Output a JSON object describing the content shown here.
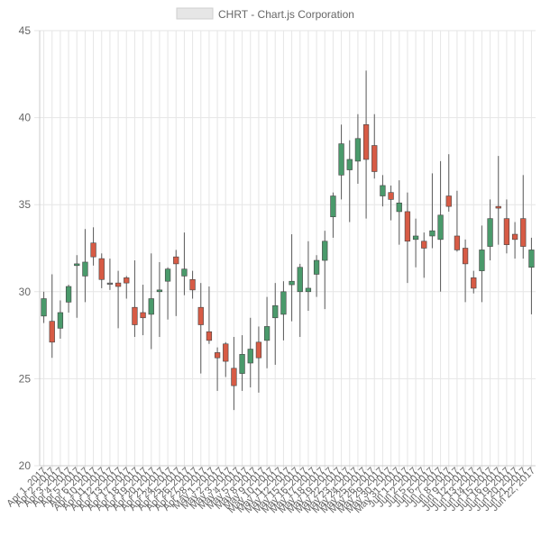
{
  "chart_data": {
    "type": "candlestick",
    "title": "",
    "legend": {
      "position": "top",
      "label": "CHRT - Chart.js Corporation"
    },
    "xlabel": "",
    "ylabel": "",
    "ylim": [
      20,
      45
    ],
    "yticks": [
      20,
      25,
      30,
      35,
      40,
      45
    ],
    "grid": true,
    "colors": {
      "up": "#4a9a6b",
      "down": "#d75b45",
      "unchanged": "#888888",
      "grid": "#e6e6e6",
      "text": "#666666",
      "wick": "#5a5a5a"
    },
    "candles": [
      {
        "date": "Apr 1, 2017",
        "o": 28.6,
        "h": 30.0,
        "l": 28.2,
        "c": 29.6
      },
      {
        "date": "Apr 2, 2017",
        "o": 28.3,
        "h": 31.0,
        "l": 26.2,
        "c": 27.1
      },
      {
        "date": "Apr 3, 2017",
        "o": 27.9,
        "h": 29.5,
        "l": 27.3,
        "c": 28.8
      },
      {
        "date": "Apr 4, 2017",
        "o": 29.4,
        "h": 30.4,
        "l": 28.8,
        "c": 30.3
      },
      {
        "date": "Apr 5, 2017",
        "o": 31.5,
        "h": 32.1,
        "l": 28.5,
        "c": 31.6
      },
      {
        "date": "Apr 6, 2017",
        "o": 30.9,
        "h": 33.6,
        "l": 29.4,
        "c": 31.7
      },
      {
        "date": "Apr 7, 2017",
        "o": 32.8,
        "h": 33.7,
        "l": 31.5,
        "c": 32.0
      },
      {
        "date": "Apr 8, 2017",
        "o": 31.9,
        "h": 32.2,
        "l": 30.2,
        "c": 30.7
      },
      {
        "date": "Apr 9, 2017",
        "o": 30.5,
        "h": 31.9,
        "l": 30.1,
        "c": 30.5
      },
      {
        "date": "Apr 10, 2017",
        "o": 30.5,
        "h": 31.2,
        "l": 27.9,
        "c": 30.3
      },
      {
        "date": "Apr 11, 2017",
        "o": 30.8,
        "h": 30.9,
        "l": 29.6,
        "c": 30.5
      },
      {
        "date": "Apr 12, 2017",
        "o": 29.1,
        "h": 31.8,
        "l": 27.4,
        "c": 28.1
      },
      {
        "date": "Apr 13, 2017",
        "o": 28.8,
        "h": 30.4,
        "l": 27.5,
        "c": 28.5
      },
      {
        "date": "Apr 14, 2017",
        "o": 28.7,
        "h": 32.2,
        "l": 26.7,
        "c": 29.6
      },
      {
        "date": "Apr 15, 2017",
        "o": 30.0,
        "h": 31.7,
        "l": 27.4,
        "c": 30.1
      },
      {
        "date": "Apr 16, 2017",
        "o": 30.6,
        "h": 31.4,
        "l": 28.4,
        "c": 31.3
      },
      {
        "date": "Apr 17, 2017",
        "o": 32.0,
        "h": 32.4,
        "l": 28.6,
        "c": 31.6
      },
      {
        "date": "Apr 18, 2017",
        "o": 30.9,
        "h": 33.4,
        "l": 29.8,
        "c": 31.3
      },
      {
        "date": "Apr 19, 2017",
        "o": 30.7,
        "h": 31.2,
        "l": 29.6,
        "c": 30.1
      },
      {
        "date": "Apr 20, 2017",
        "o": 29.1,
        "h": 30.5,
        "l": 25.3,
        "c": 28.1
      },
      {
        "date": "Apr 21, 2017",
        "o": 27.7,
        "h": 30.3,
        "l": 27.0,
        "c": 27.2
      },
      {
        "date": "Apr 22, 2017",
        "o": 26.5,
        "h": 26.8,
        "l": 24.3,
        "c": 26.2
      },
      {
        "date": "Apr 23, 2017",
        "o": 27.0,
        "h": 27.1,
        "l": 25.1,
        "c": 26.0
      },
      {
        "date": "Apr 24, 2017",
        "o": 25.6,
        "h": 27.4,
        "l": 23.2,
        "c": 24.6
      },
      {
        "date": "Apr 25, 2017",
        "o": 25.3,
        "h": 27.5,
        "l": 24.3,
        "c": 26.4
      },
      {
        "date": "Apr 26, 2017",
        "o": 25.9,
        "h": 28.5,
        "l": 24.5,
        "c": 26.7
      },
      {
        "date": "Apr 27, 2017",
        "o": 27.1,
        "h": 28.0,
        "l": 24.2,
        "c": 26.2
      },
      {
        "date": "Apr 28, 2017",
        "o": 27.2,
        "h": 29.7,
        "l": 25.6,
        "c": 28.0
      },
      {
        "date": "Apr 29, 2017",
        "o": 28.5,
        "h": 30.5,
        "l": 25.8,
        "c": 29.2
      },
      {
        "date": "Apr 30, 2017",
        "o": 28.7,
        "h": 30.6,
        "l": 27.2,
        "c": 30.0
      },
      {
        "date": "May 1, 2017",
        "o": 30.4,
        "h": 33.3,
        "l": 28.3,
        "c": 30.6
      },
      {
        "date": "May 2, 2017",
        "o": 30.0,
        "h": 31.6,
        "l": 27.4,
        "c": 31.4
      },
      {
        "date": "May 3, 2017",
        "o": 30.0,
        "h": 32.9,
        "l": 28.9,
        "c": 30.2
      },
      {
        "date": "May 4, 2017",
        "o": 31.0,
        "h": 32.1,
        "l": 29.7,
        "c": 31.8
      },
      {
        "date": "May 5, 2017",
        "o": 31.8,
        "h": 33.5,
        "l": 29.0,
        "c": 32.9
      },
      {
        "date": "May 6, 2017",
        "o": 34.3,
        "h": 35.7,
        "l": 33.1,
        "c": 35.5
      },
      {
        "date": "May 7, 2017",
        "o": 36.7,
        "h": 39.6,
        "l": 35.3,
        "c": 38.5
      },
      {
        "date": "May 8, 2017",
        "o": 37.0,
        "h": 38.7,
        "l": 34.0,
        "c": 37.6
      },
      {
        "date": "May 9, 2017",
        "o": 37.5,
        "h": 40.2,
        "l": 36.2,
        "c": 38.8
      },
      {
        "date": "May 10, 2017",
        "o": 39.6,
        "h": 42.7,
        "l": 34.2,
        "c": 37.6
      },
      {
        "date": "May 11, 2017",
        "o": 38.4,
        "h": 40.2,
        "l": 36.5,
        "c": 36.9
      },
      {
        "date": "May 12, 2017",
        "o": 35.5,
        "h": 36.7,
        "l": 34.9,
        "c": 36.1
      },
      {
        "date": "May 13, 2017",
        "o": 35.7,
        "h": 36.1,
        "l": 34.1,
        "c": 35.3
      },
      {
        "date": "May 14, 2017",
        "o": 34.6,
        "h": 36.4,
        "l": 32.7,
        "c": 35.1
      },
      {
        "date": "May 15, 2017",
        "o": 34.6,
        "h": 35.7,
        "l": 30.5,
        "c": 32.9
      },
      {
        "date": "May 16, 2017",
        "o": 33.0,
        "h": 34.2,
        "l": 31.4,
        "c": 33.2
      },
      {
        "date": "May 17, 2017",
        "o": 32.9,
        "h": 33.4,
        "l": 30.8,
        "c": 32.5
      },
      {
        "date": "May 18, 2017",
        "o": 33.2,
        "h": 36.8,
        "l": 32.5,
        "c": 33.5
      },
      {
        "date": "May 19, 2017",
        "o": 33.0,
        "h": 37.5,
        "l": 30.0,
        "c": 34.4
      },
      {
        "date": "May 20, 2017",
        "o": 35.5,
        "h": 37.9,
        "l": 34.6,
        "c": 34.9
      },
      {
        "date": "May 21, 2017",
        "o": 33.2,
        "h": 35.8,
        "l": 32.3,
        "c": 32.4
      },
      {
        "date": "May 22, 2017",
        "o": 32.5,
        "h": 33.0,
        "l": 29.4,
        "c": 31.6
      },
      {
        "date": "May 23, 2017",
        "o": 30.8,
        "h": 31.2,
        "l": 29.9,
        "c": 30.2
      },
      {
        "date": "May 24, 2017",
        "o": 31.2,
        "h": 33.8,
        "l": 29.4,
        "c": 32.4
      },
      {
        "date": "May 25, 2017",
        "o": 32.6,
        "h": 35.3,
        "l": 31.8,
        "c": 34.2
      },
      {
        "date": "May 26, 2017",
        "o": 34.9,
        "h": 37.8,
        "l": 32.7,
        "c": 34.8
      },
      {
        "date": "May 27, 2017",
        "o": 34.2,
        "h": 35.3,
        "l": 32.2,
        "c": 32.7
      },
      {
        "date": "May 28, 2017",
        "o": 33.3,
        "h": 34.0,
        "l": 31.9,
        "c": 33.0
      },
      {
        "date": "May 29, 2017",
        "o": 34.2,
        "h": 36.7,
        "l": 31.9,
        "c": 32.6
      },
      {
        "date": "May 30, 2017",
        "o": 31.4,
        "h": 33.1,
        "l": 28.7,
        "c": 32.4
      }
    ],
    "xticks": [
      "Apr 1, 2017",
      "Apr 2, 2017",
      "Apr 3, 2017",
      "Apr 4, 2017",
      "Apr 5, 2017",
      "Apr 6, 2017",
      "Apr 10, 2017",
      "Apr 11, 2017",
      "Apr 12, 2017",
      "Apr 13, 2017",
      "Apr 17, 2017",
      "Apr 18, 2017",
      "Apr 19, 2017",
      "Apr 20, 2017",
      "Apr 21, 2017",
      "Apr 24, 2017",
      "Apr 25, 2017",
      "Apr 26, 2017",
      "Apr 27, 2017",
      "Apr 28, 2017",
      "May 1, 2017",
      "May 2, 2017",
      "May 3, 2017",
      "May 4, 2017",
      "May 5, 2017",
      "May 8, 2017",
      "May 9, 2017",
      "May 10, 2017",
      "May 11, 2017",
      "May 12, 2017",
      "May 15, 2017",
      "May 16, 2017",
      "May 17, 2017",
      "May 18, 2017",
      "May 19, 2017",
      "May 22, 2017",
      "May 23, 2017",
      "May 24, 2017",
      "May 25, 2017",
      "May 26, 2017",
      "May 29, 2017",
      "May 30, 2017",
      "May 31, 2017",
      "Jun 1, 2017",
      "Jun 2, 2017",
      "Jun 5, 2017",
      "Jun 6, 2017",
      "Jun 7, 2017",
      "Jun 8, 2017",
      "Jun 9, 2017",
      "Jun 12, 2017",
      "Jun 13, 2017",
      "Jun 14, 2017",
      "Jun 15, 2017",
      "Jun 16, 2017",
      "Jun 19, 2017",
      "Jun 20, 2017",
      "Jun 21, 2017",
      "Jun 22, 2017"
    ]
  }
}
